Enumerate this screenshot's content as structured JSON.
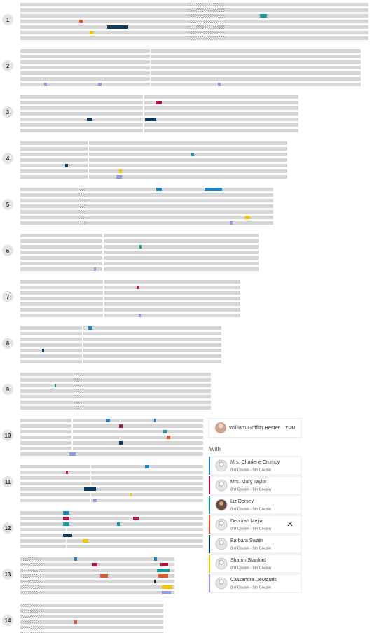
{
  "chromosomes": [
    "1",
    "2",
    "3",
    "4",
    "5",
    "6",
    "7",
    "8",
    "9",
    "10",
    "11",
    "12",
    "13",
    "14"
  ],
  "user": {
    "name": "William Griffith Hester",
    "tag": "YOU"
  },
  "with_label": "With",
  "matches": [
    {
      "name": "Mrs. Charlene Crumby",
      "relationship": "3rd Cousin - 5th Cousin"
    },
    {
      "name": "Mrs. Mary Taylor",
      "relationship": "3rd Cousin - 5th Cousin"
    },
    {
      "name": "Liz Dorsey",
      "relationship": "3rd Cousin - 5th Cousin"
    },
    {
      "name": "Deborah Mejia",
      "relationship": "3rd Cousin - 5th Cousin"
    },
    {
      "name": "Barbara Swain",
      "relationship": "3rd Cousin - 5th Cousin"
    },
    {
      "name": "Sharon Stanford",
      "relationship": "3rd Cousin - 5th Cousin"
    },
    {
      "name": "Cassandra DeMarais",
      "relationship": "3rd Cousin - 5th Cousin"
    }
  ]
}
